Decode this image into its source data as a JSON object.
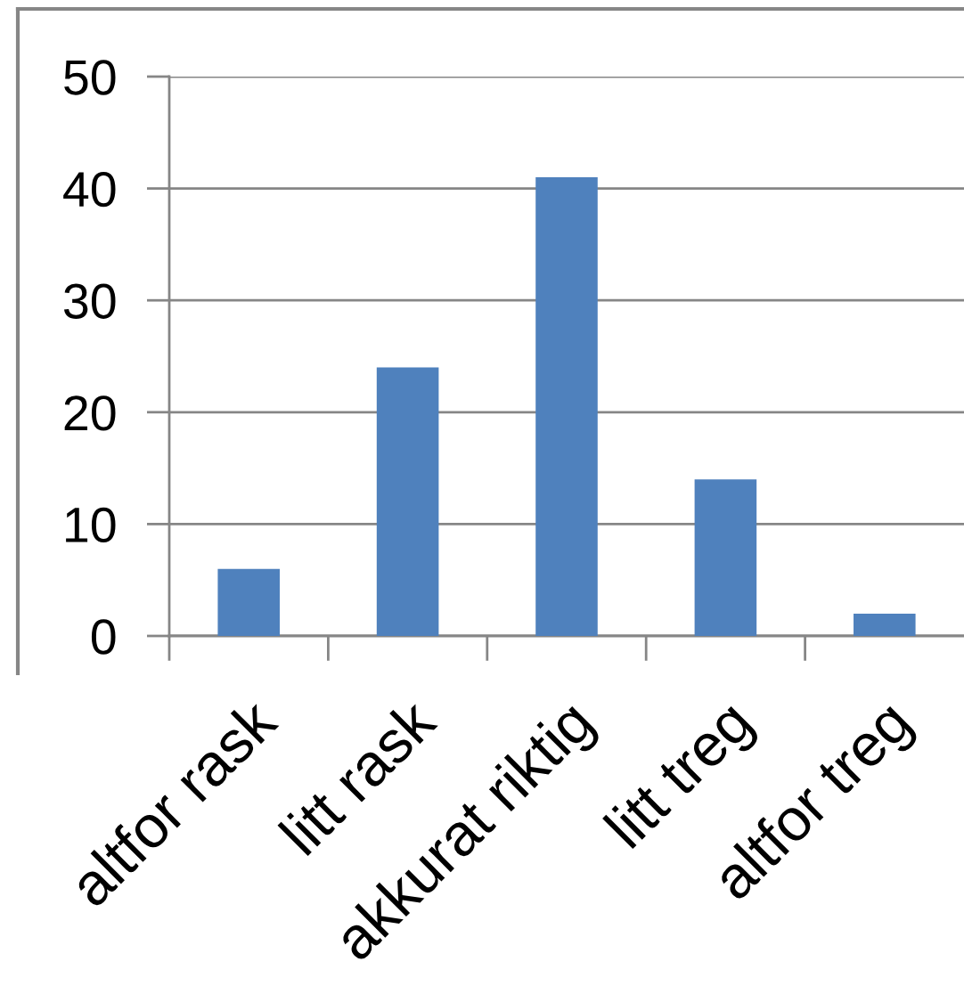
{
  "chart_data": {
    "type": "bar",
    "categories": [
      "altfor rask",
      "litt rask",
      "akkurat riktig",
      "litt treg",
      "altfor treg"
    ],
    "values": [
      6,
      24,
      41,
      14,
      2
    ],
    "color": "#4f81bd",
    "ylim": [
      0,
      50
    ],
    "yticks": [
      0,
      10,
      20,
      30,
      40,
      50
    ],
    "grid": "y"
  }
}
